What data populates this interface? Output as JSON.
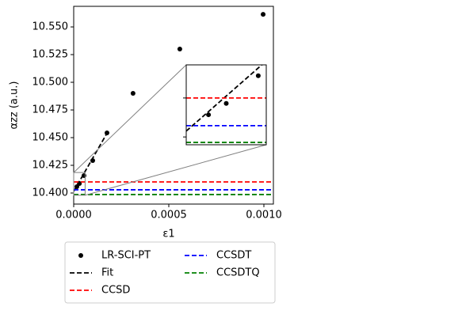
{
  "chart_data": {
    "type": "line",
    "xlabel": "ε1",
    "ylabel": "αzz (a.u.)",
    "xlim": [
      0,
      0.00105
    ],
    "ylim": [
      10.39,
      10.5686
    ],
    "xticks": [
      {
        "value": 0,
        "label": "0.0000"
      },
      {
        "value": 0.0005,
        "label": "0.0005"
      },
      {
        "value": 0.001,
        "label": "0.0010"
      }
    ],
    "yticks": [
      {
        "value": 10.4,
        "label": "10.400"
      },
      10.425,
      {
        "value": 10.45,
        "label": "10.450"
      },
      10.475,
      {
        "value": 10.5,
        "label": "10.500"
      },
      10.525,
      {
        "value": 10.55,
        "label": "10.550"
      }
    ],
    "series": [
      {
        "name": "LR-SCI-PT",
        "color": "#000000",
        "style": "points",
        "x": [
          1.67e-05,
          3e-05,
          5.4e-05,
          0.0001,
          0.000175,
          0.000312,
          0.000558,
          0.000996
        ],
        "values": [
          10.4057,
          10.4086,
          10.4157,
          10.4293,
          10.4543,
          10.49,
          10.53,
          10.5614
        ]
      },
      {
        "name": "Fit",
        "color": "#000000",
        "style": "dashed",
        "x": [
          0,
          0.00018
        ],
        "values": [
          10.4015,
          10.4555
        ]
      },
      {
        "name": "CCSD",
        "color": "#ff0000",
        "style": "hline",
        "values": [
          10.41
        ]
      },
      {
        "name": "CCSDT",
        "color": "#0000ff",
        "style": "hline",
        "values": [
          10.4029
        ]
      },
      {
        "name": "CCSDTQ",
        "color": "#008000",
        "style": "hline",
        "values": [
          10.3986
        ]
      }
    ],
    "inset": {
      "xlim": [
        0,
        6e-05
      ],
      "ylim": [
        10.398,
        10.4185
      ],
      "yticks": [
        10.4,
        10.41
      ]
    },
    "legend": "below"
  }
}
